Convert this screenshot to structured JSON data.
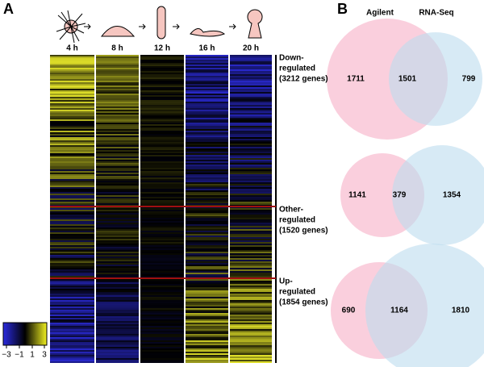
{
  "panel_a": {
    "label": "A",
    "timepoints": [
      "4 h",
      "8 h",
      "12 h",
      "16 h",
      "20 h"
    ],
    "groups": [
      [
        "Down-",
        "regulated",
        "(3212 genes)"
      ],
      [
        "Other-",
        "regulated",
        "(1520 genes)"
      ],
      [
        "Up-",
        "regulated",
        "(1854 genes)"
      ]
    ],
    "colorbar_ticks": [
      "−3",
      "−1",
      "1",
      "3"
    ]
  },
  "panel_b": {
    "label": "B",
    "set_labels": [
      "Agilent",
      "RNA-Seq"
    ],
    "venns": [
      [
        1711,
        1501,
        799
      ],
      [
        1141,
        379,
        1354
      ],
      [
        690,
        1164,
        1810
      ]
    ]
  }
}
